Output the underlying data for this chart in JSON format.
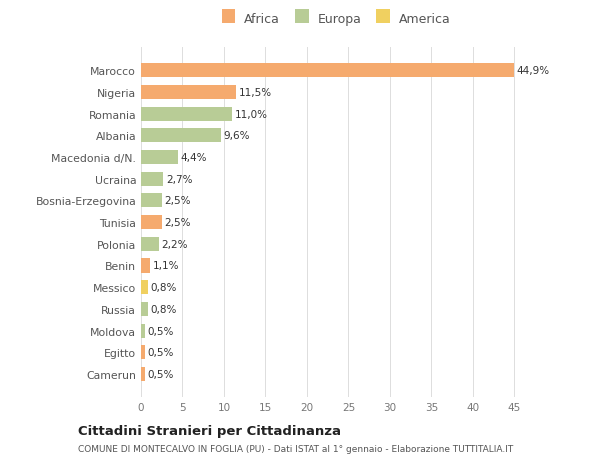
{
  "categories": [
    "Camerun",
    "Egitto",
    "Moldova",
    "Russia",
    "Messico",
    "Benin",
    "Polonia",
    "Tunisia",
    "Bosnia-Erzegovina",
    "Ucraina",
    "Macedonia d/N.",
    "Albania",
    "Romania",
    "Nigeria",
    "Marocco"
  ],
  "values": [
    0.5,
    0.5,
    0.5,
    0.8,
    0.8,
    1.1,
    2.2,
    2.5,
    2.5,
    2.7,
    4.4,
    9.6,
    11.0,
    11.5,
    44.9
  ],
  "labels": [
    "0,5%",
    "0,5%",
    "0,5%",
    "0,8%",
    "0,8%",
    "1,1%",
    "2,2%",
    "2,5%",
    "2,5%",
    "2,7%",
    "4,4%",
    "9,6%",
    "11,0%",
    "11,5%",
    "44,9%"
  ],
  "colors": [
    "#f5aa6e",
    "#f5aa6e",
    "#b8cc96",
    "#b8cc96",
    "#f0d060",
    "#f5aa6e",
    "#b8cc96",
    "#f5aa6e",
    "#b8cc96",
    "#b8cc96",
    "#b8cc96",
    "#b8cc96",
    "#b8cc96",
    "#f5aa6e",
    "#f5aa6e"
  ],
  "legend_labels": [
    "Africa",
    "Europa",
    "America"
  ],
  "legend_colors": [
    "#f5aa6e",
    "#b8cc96",
    "#f0d060"
  ],
  "title": "Cittadini Stranieri per Cittadinanza",
  "subtitle": "COMUNE DI MONTECALVO IN FOGLIA (PU) - Dati ISTAT al 1° gennaio - Elaborazione TUTTITALIA.IT",
  "xlim": [
    0,
    47
  ],
  "xticks": [
    0,
    5,
    10,
    15,
    20,
    25,
    30,
    35,
    40,
    45
  ],
  "background_color": "#ffffff",
  "grid_color": "#dddddd"
}
